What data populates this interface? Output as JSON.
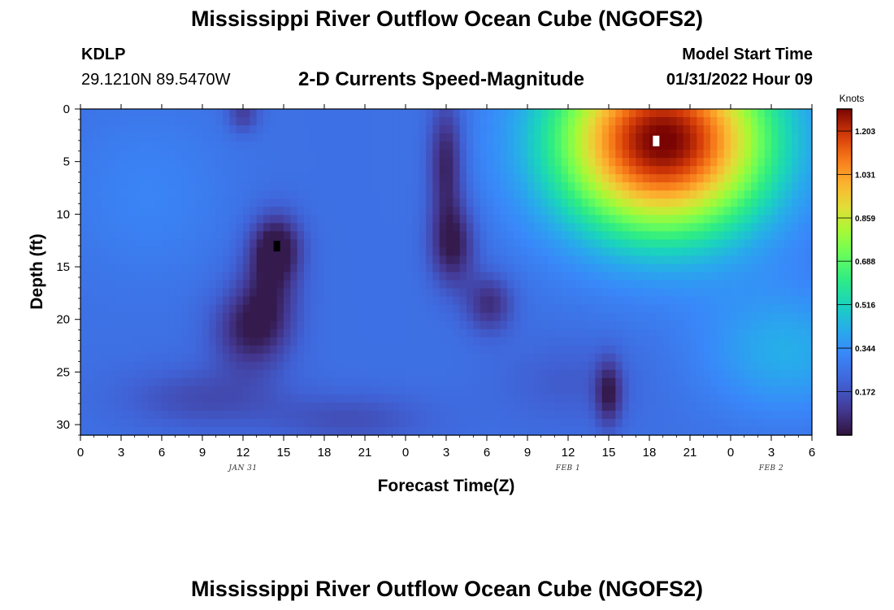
{
  "header": {
    "title": "Mississippi River Outflow Ocean Cube (NGOFS2)",
    "station_id": "KDLP",
    "station_coords": "29.1210N  89.5470W",
    "subtitle": "2-D Currents Speed-Magnitude",
    "model_start_label": "Model Start Time",
    "model_start_value": "01/31/2022 Hour 09"
  },
  "footer": {
    "title": "Mississippi River Outflow Ocean Cube (NGOFS2)"
  },
  "chart_data": {
    "type": "heatmap",
    "xlabel": "Forecast Time(Z)",
    "ylabel": "Depth (ft)",
    "x_range_hours": [
      0,
      54
    ],
    "y_range_ft": [
      0,
      31
    ],
    "y_inverted": true,
    "x_tick_labels": [
      "0",
      "3",
      "6",
      "9",
      "12",
      "15",
      "18",
      "21",
      "0",
      "3",
      "6",
      "9",
      "12",
      "15",
      "18",
      "21",
      "0",
      "3",
      "6"
    ],
    "y_tick_values": [
      0,
      5,
      10,
      15,
      20,
      25,
      30
    ],
    "date_labels": [
      {
        "text": "JAN 31",
        "hour": 12
      },
      {
        "text": "FEB 1",
        "hour": 36
      },
      {
        "text": "FEB 2",
        "hour": 51
      }
    ],
    "colorbar": {
      "unit": "Knots",
      "min": 0,
      "max": 1.29,
      "tick_labels": [
        "1.203",
        "1.031",
        "0.859",
        "0.688",
        "0.516",
        "0.344",
        "0.172"
      ],
      "tick_values": [
        1.203,
        1.031,
        0.859,
        0.688,
        0.516,
        0.344,
        0.172
      ]
    },
    "markers": [
      {
        "type": "max",
        "hour": 42.5,
        "depth": 3,
        "color": "#ffffff"
      },
      {
        "type": "min",
        "hour": 14.5,
        "depth": 13,
        "color": "#000000"
      }
    ],
    "field_features": [
      {
        "hour": 43,
        "depth": 3,
        "speed": 1.28
      },
      {
        "hour": 14.5,
        "depth": 13,
        "speed": 0.03
      },
      {
        "hour": 12.5,
        "depth": 21,
        "speed": 0.05
      },
      {
        "hour": 27,
        "depth": 14,
        "speed": 0.04
      },
      {
        "hour": 30,
        "depth": 19,
        "speed": 0.08
      },
      {
        "hour": 39,
        "depth": 26,
        "speed": 0.05
      },
      {
        "hour": 12,
        "depth": 1,
        "speed": 0.1
      },
      {
        "hour": 10,
        "depth": 29,
        "speed": 0.07
      },
      {
        "hour": 20,
        "depth": 29,
        "speed": 0.06
      },
      {
        "hour": 53,
        "depth": 25,
        "speed": 0.34
      },
      {
        "hour": 3,
        "depth": 8,
        "speed": 0.28
      }
    ],
    "grid": false,
    "legend": "colorbar-right"
  }
}
